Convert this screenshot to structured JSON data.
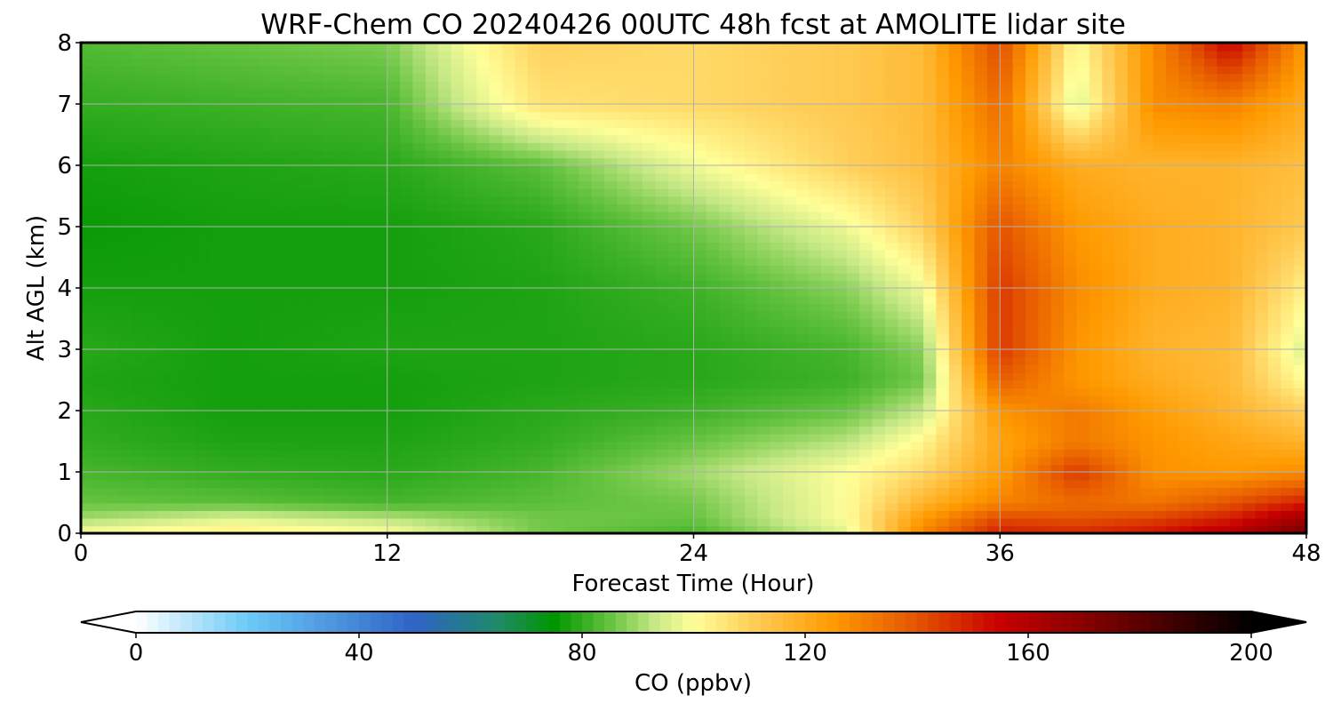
{
  "chart_data": {
    "type": "heatmap",
    "title": "WRF-Chem CO  20240426 00UTC 48h fcst at AMOLITE lidar site",
    "xlabel": "Forecast Time (Hour)",
    "ylabel": "Alt AGL (km)",
    "xlim": [
      0,
      48
    ],
    "ylim": [
      0,
      8
    ],
    "xticks": [
      0,
      12,
      24,
      36,
      48
    ],
    "yticks": [
      0,
      1,
      2,
      3,
      4,
      5,
      6,
      7,
      8
    ],
    "grid": true,
    "x": [
      0,
      6,
      12,
      18,
      24,
      30,
      33,
      36,
      39,
      42,
      45,
      48
    ],
    "y": [
      0,
      0.25,
      0.5,
      1,
      1.5,
      2,
      2.5,
      3,
      4,
      5,
      6,
      7,
      8
    ],
    "z": [
      [
        100,
        104,
        100,
        86,
        82,
        96,
        130,
        150,
        148,
        152,
        160,
        175
      ],
      [
        90,
        96,
        92,
        86,
        85,
        100,
        125,
        142,
        140,
        143,
        150,
        165
      ],
      [
        85,
        84,
        82,
        84,
        86,
        100,
        118,
        130,
        135,
        133,
        140,
        150
      ],
      [
        82,
        80,
        79,
        82,
        90,
        100,
        108,
        124,
        145,
        127,
        125,
        128
      ],
      [
        80,
        78,
        78,
        80,
        85,
        92,
        102,
        122,
        132,
        126,
        122,
        118
      ],
      [
        79,
        77,
        77,
        79,
        81,
        85,
        93,
        126,
        132,
        124,
        118,
        110
      ],
      [
        78,
        77,
        77,
        78,
        79,
        81,
        86,
        138,
        126,
        120,
        116,
        100
      ],
      [
        79,
        77,
        78,
        78,
        79,
        82,
        88,
        145,
        126,
        118,
        116,
        95
      ],
      [
        77,
        77,
        77,
        78,
        81,
        88,
        98,
        145,
        128,
        120,
        118,
        103
      ],
      [
        76,
        77,
        77,
        79,
        86,
        98,
        110,
        140,
        125,
        120,
        118,
        112
      ],
      [
        77,
        78,
        79,
        84,
        98,
        110,
        115,
        130,
        120,
        118,
        118,
        115
      ],
      [
        80,
        81,
        82,
        106,
        108,
        112,
        116,
        135,
        95,
        128,
        130,
        120
      ],
      [
        83,
        85,
        87,
        110,
        108,
        112,
        116,
        142,
        100,
        128,
        155,
        125
      ]
    ],
    "colorbar": {
      "label": "CO  (ppbv)",
      "min": 0,
      "max": 200,
      "ticks": [
        0,
        40,
        80,
        120,
        160,
        200
      ],
      "extend": "both",
      "orientation": "horizontal",
      "location": "bottom",
      "stops": [
        {
          "v": 0,
          "c": "#ffffff"
        },
        {
          "v": 20,
          "c": "#6ccaf7"
        },
        {
          "v": 50,
          "c": "#2f63c7"
        },
        {
          "v": 65,
          "c": "#1f8a66"
        },
        {
          "v": 75,
          "c": "#009600"
        },
        {
          "v": 85,
          "c": "#66c340"
        },
        {
          "v": 93,
          "c": "#c6e886"
        },
        {
          "v": 100,
          "c": "#ffff99"
        },
        {
          "v": 110,
          "c": "#ffd05c"
        },
        {
          "v": 125,
          "c": "#ff9a00"
        },
        {
          "v": 140,
          "c": "#e45400"
        },
        {
          "v": 155,
          "c": "#c80000"
        },
        {
          "v": 170,
          "c": "#880000"
        },
        {
          "v": 200,
          "c": "#000000"
        }
      ]
    }
  }
}
